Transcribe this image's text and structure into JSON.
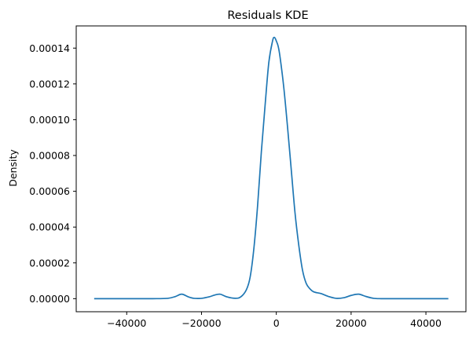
{
  "chart_data": {
    "type": "line",
    "title": "Residuals KDE",
    "xlabel": "",
    "ylabel": "Density",
    "xlim": [
      -53500,
      50700
    ],
    "ylim": [
      -7.3e-06,
      0.0001524
    ],
    "grid": false,
    "xticks": [
      -40000,
      -20000,
      0,
      20000,
      40000
    ],
    "xtick_labels": [
      "−40000",
      "−20000",
      "0",
      "20000",
      "40000"
    ],
    "yticks": [
      0,
      2e-05,
      4e-05,
      6e-05,
      8e-05,
      0.0001,
      0.00012,
      0.00014
    ],
    "ytick_labels": [
      "0.00000",
      "0.00002",
      "0.00004",
      "0.00006",
      "0.00008",
      "0.00010",
      "0.00012",
      "0.00014"
    ],
    "series": [
      {
        "color": "#1f77b4",
        "x": [
          -48700,
          -40000,
          -33000,
          -29000,
          -27000,
          -25300,
          -23500,
          -22000,
          -20000,
          -18000,
          -16500,
          -15000,
          -13200,
          -11000,
          -9500,
          -8000,
          -7000,
          -6000,
          -5000,
          -4000,
          -3000,
          -2000,
          -1000,
          -500,
          0,
          500,
          1000,
          2000,
          3000,
          4000,
          5000,
          6000,
          7000,
          8000,
          9000,
          10000,
          12000,
          14000,
          16000,
          18000,
          20000,
          22000,
          24000,
          26000,
          28000,
          32000,
          40000,
          46000
        ],
        "y": [
          0,
          0,
          0,
          2e-07,
          1.2e-06,
          2.5e-06,
          1e-06,
          2e-07,
          2e-07,
          1e-06,
          2e-06,
          2.5e-06,
          1e-06,
          2e-07,
          1e-06,
          5e-06,
          1.2e-05,
          2.8e-05,
          5.2e-05,
          8.2e-05,
          0.000108,
          0.000132,
          0.000144,
          0.000146,
          0.000144,
          0.000141,
          0.000135,
          0.000118,
          9.6e-05,
          7.2e-05,
          4.8e-05,
          3e-05,
          1.6e-05,
          8.5e-06,
          5.5e-06,
          3.8e-06,
          2.8e-06,
          1.2e-06,
          2e-07,
          5e-07,
          1.8e-06,
          2.5e-06,
          1.2e-06,
          2e-07,
          0,
          0,
          0,
          0
        ]
      }
    ]
  }
}
